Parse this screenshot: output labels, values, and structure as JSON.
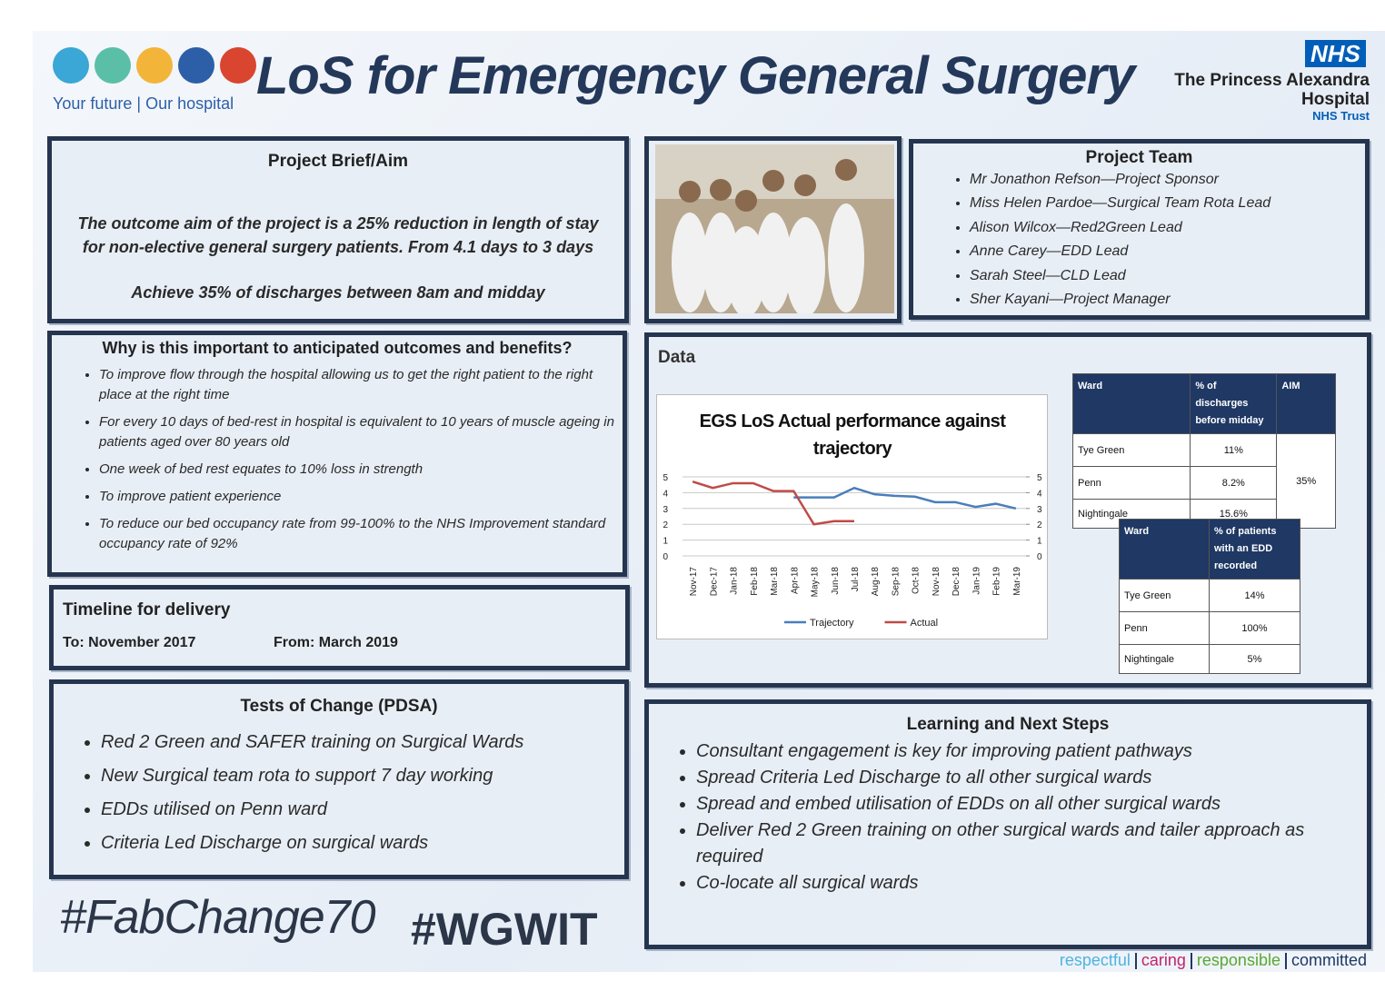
{
  "header": {
    "tagline": "Your future | Our hospital",
    "title": "LoS for Emergency General Surgery",
    "nhs_badge": "NHS",
    "trust_line1": "The Princess Alexandra",
    "trust_line2": "Hospital",
    "trust_line3": "NHS Trust"
  },
  "brief": {
    "title": "Project Brief/Aim",
    "paragraphs": [
      "The outcome aim of the project is a 25% reduction in length of stay for non-elective general surgery patients. From 4.1 days to 3 days",
      "Achieve 35% of discharges between 8am and midday"
    ]
  },
  "team": {
    "title": "Project Team",
    "members": [
      "Mr Jonathon Refson—Project Sponsor",
      "Miss Helen Pardoe—Surgical Team Rota Lead",
      "Alison Wilcox—Red2Green Lead",
      "Anne Carey—EDD Lead",
      "Sarah Steel—CLD Lead",
      "Sher Kayani—Project Manager"
    ]
  },
  "why": {
    "title": "Why is this important to anticipated outcomes and benefits?",
    "items": [
      "To improve flow through the hospital allowing us to get the right patient to the right place at the right time",
      "For every 10 days of bed-rest in hospital is equivalent to 10 years of muscle ageing in patients aged over 80 years old",
      "One week of bed rest equates to 10% loss in strength",
      "To improve patient experience",
      "To reduce our bed occupancy rate from 99-100% to the NHS Improvement standard occupancy rate of 92%"
    ]
  },
  "timeline": {
    "title": "Timeline for delivery",
    "to": "To: November 2017",
    "from": "From: March 2019"
  },
  "tests": {
    "title": "Tests of Change (PDSA)",
    "items": [
      "Red 2 Green and SAFER training on Surgical Wards",
      "New Surgical team rota to support 7 day working",
      "EDDs utilised on Penn ward",
      "Criteria Led Discharge on surgical wards"
    ]
  },
  "data_section": {
    "title": "Data",
    "table1": {
      "headers": [
        "Ward",
        "% of discharges before midday",
        "AIM"
      ],
      "rows": [
        [
          "Tye Green",
          "11%"
        ],
        [
          "Penn",
          "8.2%"
        ],
        [
          "Nightingale",
          "15.6%"
        ]
      ],
      "aim": "35%"
    },
    "table2": {
      "headers": [
        "Ward",
        "% of patients with an EDD recorded"
      ],
      "rows": [
        [
          "Tye Green",
          "14%"
        ],
        [
          "Penn",
          "100%"
        ],
        [
          "Nightingale",
          "5%"
        ]
      ]
    }
  },
  "chart_data": {
    "type": "line",
    "title": "EGS LoS Actual performance against trajectory",
    "categories": [
      "Nov-17",
      "Dec-17",
      "Jan-18",
      "Feb-18",
      "Mar-18",
      "Apr-18",
      "May-18",
      "Jun-18",
      "Jul-18",
      "Aug-18",
      "Sep-18",
      "Oct-18",
      "Nov-18",
      "Dec-18",
      "Jan-19",
      "Feb-19",
      "Mar-19"
    ],
    "series": [
      {
        "name": "Trajectory",
        "color": "#4a7ebb",
        "values": [
          null,
          null,
          null,
          null,
          null,
          3.7,
          3.7,
          3.7,
          4.3,
          3.9,
          3.8,
          3.75,
          3.4,
          3.4,
          3.1,
          3.3,
          3.0
        ]
      },
      {
        "name": "Actual",
        "color": "#be4b48",
        "values": [
          4.7,
          4.3,
          4.6,
          4.6,
          4.1,
          4.1,
          2.0,
          2.2,
          2.2,
          null,
          null,
          null,
          null,
          null,
          null,
          null,
          null
        ]
      }
    ],
    "ylim": [
      0,
      5
    ],
    "yticks": [
      0,
      1,
      2,
      3,
      4,
      5
    ],
    "y2lim": [
      0,
      5
    ],
    "y2ticks": [
      0,
      1,
      2,
      3,
      4,
      5
    ],
    "grid": true,
    "legend": "bottom"
  },
  "learning": {
    "title": "Learning and Next Steps",
    "items": [
      "Consultant engagement is key for improving patient pathways",
      "Spread Criteria Led Discharge to all other surgical wards",
      "Spread and embed utilisation of EDDs on all other surgical wards",
      "Deliver Red 2 Green training on other surgical wards and tailer approach as required",
      "Co-locate all surgical wards"
    ]
  },
  "hashtags": [
    "#FabChange70",
    "#WGWIT"
  ],
  "values": [
    "respectful",
    "caring",
    "responsible",
    "committed"
  ]
}
